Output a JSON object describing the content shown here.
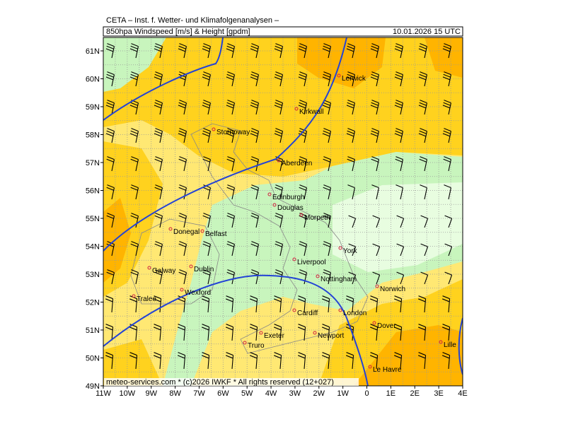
{
  "header": {
    "title": "CETA – Inst. f. Wetter- und Klimafolgenanalysen –",
    "product": "850hpa Windspeed [m/s] & Height [gpdm]",
    "valid": "10.01.2026 15 UTC"
  },
  "axes": {
    "lon_labels": [
      "11W",
      "10W",
      "9W",
      "8W",
      "7W",
      "6W",
      "5W",
      "4W",
      "3W",
      "2W",
      "1W",
      "0",
      "1E",
      "2E",
      "3E",
      "4E"
    ],
    "lat_labels": [
      "49N",
      "50N",
      "51N",
      "52N",
      "53N",
      "54N",
      "55N",
      "56N",
      "57N",
      "58N",
      "59N",
      "60N",
      "61N"
    ]
  },
  "cities": [
    "Lerwick",
    "Kirkwall",
    "Stornoway",
    "Aberdeen",
    "Edinburgh",
    "Douglas",
    "Morpeth",
    "Donegal",
    "Belfast",
    "York",
    "Liverpool",
    "Galway",
    "Dublin",
    "Nottingham",
    "Norwich",
    "Wexford",
    "Tralee",
    "London",
    "Cardiff",
    "Dover",
    "Exeter",
    "Newport",
    "Lille",
    "Truro",
    "Le Havre"
  ],
  "footer": "meteo-services.com * (c)2026 IWKF * All rights reserved (12+027)"
}
